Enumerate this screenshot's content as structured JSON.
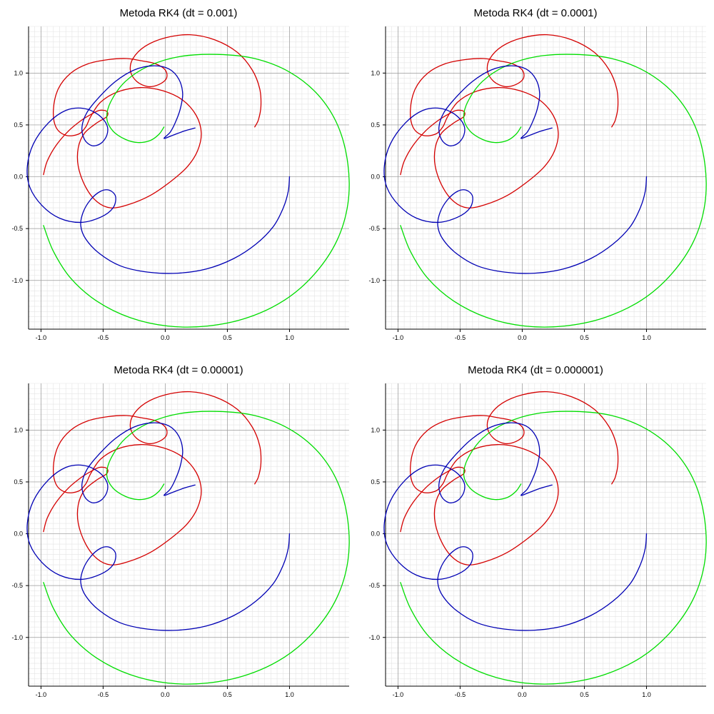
{
  "colors": {
    "body1": "#d40000",
    "body2": "#00dd00",
    "body3": "#0000b4",
    "grid_minor": "#e4e4e4",
    "grid_major": "#9a9a9a",
    "axis": "#000000"
  },
  "chart_data": [
    {
      "type": "line",
      "title": "Metoda RK4 (dt = 0.001)",
      "xlabel": "",
      "ylabel": "",
      "xlim": [
        -1.1,
        1.48
      ],
      "ylim": [
        -1.47,
        1.45
      ],
      "xticks": [
        -1.0,
        -0.5,
        0.0,
        0.5,
        1.0
      ],
      "xtick_labels": [
        "-1.0",
        "-0.5",
        "0.0",
        "0.5",
        "1.0"
      ],
      "yticks": [
        -1.0,
        -0.5,
        0.0,
        0.5,
        1.0
      ],
      "ytick_labels": [
        "-1.0",
        "-0.5",
        "0.0",
        "0.5",
        "1.0"
      ],
      "grid": true
    },
    {
      "type": "line",
      "title": "Metoda RK4 (dt = 0.0001)",
      "xlabel": "",
      "ylabel": "",
      "xlim": [
        -1.1,
        1.48
      ],
      "ylim": [
        -1.47,
        1.45
      ],
      "xticks": [
        -1.0,
        -0.5,
        0.0,
        0.5,
        1.0
      ],
      "xtick_labels": [
        "-1.0",
        "-0.5",
        "0.0",
        "0.5",
        "1.0"
      ],
      "yticks": [
        -1.0,
        -0.5,
        0.0,
        0.5,
        1.0
      ],
      "ytick_labels": [
        "-1.0",
        "-0.5",
        "0.0",
        "0.5",
        "1.0"
      ],
      "grid": true
    },
    {
      "type": "line",
      "title": "Metoda RK4 (dt = 0.00001)",
      "xlabel": "",
      "ylabel": "",
      "xlim": [
        -1.1,
        1.48
      ],
      "ylim": [
        -1.47,
        1.45
      ],
      "xticks": [
        -1.0,
        -0.5,
        0.0,
        0.5,
        1.0
      ],
      "xtick_labels": [
        "-1.0",
        "-0.5",
        "0.0",
        "0.5",
        "1.0"
      ],
      "yticks": [
        -1.0,
        -0.5,
        0.0,
        0.5,
        1.0
      ],
      "ytick_labels": [
        "-1.0",
        "-0.5",
        "0.0",
        "0.5",
        "1.0"
      ],
      "grid": true
    },
    {
      "type": "line",
      "title": "Metoda RK4 (dt = 0.000001)",
      "xlabel": "",
      "ylabel": "",
      "xlim": [
        -1.1,
        1.48
      ],
      "ylim": [
        -1.47,
        1.45
      ],
      "xticks": [
        -1.0,
        -0.5,
        0.0,
        0.5,
        1.0
      ],
      "xtick_labels": [
        "-1.0",
        "-0.5",
        "0.0",
        "0.5",
        "1.0"
      ],
      "yticks": [
        -1.0,
        -0.5,
        0.0,
        0.5,
        1.0
      ],
      "ytick_labels": [
        "-1.0",
        "-0.5",
        "0.0",
        "0.5",
        "1.0"
      ],
      "grid": true
    }
  ],
  "series": [
    {
      "color_key": "body1",
      "points": [
        [
          -0.98,
          0.02
        ],
        [
          -0.95,
          0.15
        ],
        [
          -0.88,
          0.3
        ],
        [
          -0.78,
          0.44
        ],
        [
          -0.68,
          0.54
        ],
        [
          -0.6,
          0.6
        ],
        [
          -0.53,
          0.64
        ],
        [
          -0.47,
          0.63
        ],
        [
          -0.47,
          0.58
        ],
        [
          -0.55,
          0.52
        ],
        [
          -0.65,
          0.42
        ],
        [
          -0.7,
          0.28
        ],
        [
          -0.7,
          0.1
        ],
        [
          -0.64,
          -0.1
        ],
        [
          -0.55,
          -0.24
        ],
        [
          -0.44,
          -0.3
        ],
        [
          -0.3,
          -0.27
        ],
        [
          -0.12,
          -0.18
        ],
        [
          0.05,
          -0.04
        ],
        [
          0.18,
          0.1
        ],
        [
          0.26,
          0.25
        ],
        [
          0.29,
          0.42
        ],
        [
          0.25,
          0.59
        ],
        [
          0.14,
          0.74
        ],
        [
          -0.02,
          0.83
        ],
        [
          -0.2,
          0.86
        ],
        [
          -0.38,
          0.82
        ],
        [
          -0.52,
          0.72
        ],
        [
          -0.6,
          0.58
        ],
        [
          -0.64,
          0.48
        ],
        [
          -0.7,
          0.41
        ],
        [
          -0.8,
          0.4
        ],
        [
          -0.88,
          0.48
        ],
        [
          -0.9,
          0.65
        ],
        [
          -0.86,
          0.85
        ],
        [
          -0.76,
          1.0
        ],
        [
          -0.62,
          1.09
        ],
        [
          -0.46,
          1.13
        ],
        [
          -0.31,
          1.14
        ],
        [
          -0.2,
          1.12
        ],
        [
          -0.08,
          1.09
        ],
        [
          0.0,
          1.03
        ],
        [
          0.01,
          0.95
        ],
        [
          -0.05,
          0.89
        ],
        [
          -0.14,
          0.87
        ],
        [
          -0.23,
          0.92
        ],
        [
          -0.28,
          1.02
        ],
        [
          -0.26,
          1.14
        ],
        [
          -0.16,
          1.26
        ],
        [
          0.0,
          1.34
        ],
        [
          0.2,
          1.37
        ],
        [
          0.4,
          1.32
        ],
        [
          0.58,
          1.2
        ],
        [
          0.7,
          1.03
        ],
        [
          0.76,
          0.85
        ],
        [
          0.77,
          0.68
        ],
        [
          0.75,
          0.55
        ],
        [
          0.72,
          0.48
        ]
      ]
    },
    {
      "color_key": "body2",
      "points": [
        [
          -0.98,
          -0.47
        ],
        [
          -0.9,
          -0.72
        ],
        [
          -0.76,
          -0.98
        ],
        [
          -0.55,
          -1.2
        ],
        [
          -0.28,
          -1.36
        ],
        [
          0.02,
          -1.44
        ],
        [
          0.34,
          -1.44
        ],
        [
          0.66,
          -1.36
        ],
        [
          0.96,
          -1.19
        ],
        [
          1.2,
          -0.94
        ],
        [
          1.38,
          -0.62
        ],
        [
          1.47,
          -0.26
        ],
        [
          1.47,
          0.12
        ],
        [
          1.39,
          0.49
        ],
        [
          1.23,
          0.79
        ],
        [
          1.0,
          1.01
        ],
        [
          0.72,
          1.14
        ],
        [
          0.42,
          1.18
        ],
        [
          0.12,
          1.16
        ],
        [
          -0.13,
          1.07
        ],
        [
          -0.32,
          0.92
        ],
        [
          -0.44,
          0.72
        ],
        [
          -0.47,
          0.56
        ],
        [
          -0.42,
          0.44
        ],
        [
          -0.32,
          0.36
        ],
        [
          -0.22,
          0.33
        ],
        [
          -0.12,
          0.35
        ],
        [
          -0.05,
          0.41
        ],
        [
          -0.01,
          0.48
        ]
      ]
    },
    {
      "color_key": "body3",
      "points": [
        [
          1.0,
          0.0
        ],
        [
          0.99,
          -0.14
        ],
        [
          0.95,
          -0.3
        ],
        [
          0.87,
          -0.48
        ],
        [
          0.73,
          -0.65
        ],
        [
          0.55,
          -0.79
        ],
        [
          0.33,
          -0.89
        ],
        [
          0.1,
          -0.93
        ],
        [
          -0.14,
          -0.92
        ],
        [
          -0.36,
          -0.86
        ],
        [
          -0.53,
          -0.74
        ],
        [
          -0.64,
          -0.6
        ],
        [
          -0.68,
          -0.47
        ],
        [
          -0.66,
          -0.34
        ],
        [
          -0.6,
          -0.22
        ],
        [
          -0.52,
          -0.14
        ],
        [
          -0.45,
          -0.13
        ],
        [
          -0.4,
          -0.19
        ],
        [
          -0.42,
          -0.3
        ],
        [
          -0.52,
          -0.39
        ],
        [
          -0.68,
          -0.44
        ],
        [
          -0.85,
          -0.4
        ],
        [
          -0.99,
          -0.28
        ],
        [
          -1.09,
          -0.1
        ],
        [
          -1.11,
          0.1
        ],
        [
          -1.06,
          0.32
        ],
        [
          -0.94,
          0.52
        ],
        [
          -0.8,
          0.64
        ],
        [
          -0.66,
          0.66
        ],
        [
          -0.54,
          0.6
        ],
        [
          -0.47,
          0.5
        ],
        [
          -0.47,
          0.4
        ],
        [
          -0.52,
          0.32
        ],
        [
          -0.59,
          0.3
        ],
        [
          -0.65,
          0.36
        ],
        [
          -0.67,
          0.48
        ],
        [
          -0.63,
          0.62
        ],
        [
          -0.53,
          0.77
        ],
        [
          -0.4,
          0.92
        ],
        [
          -0.25,
          1.03
        ],
        [
          -0.1,
          1.07
        ],
        [
          0.03,
          1.04
        ],
        [
          0.11,
          0.94
        ],
        [
          0.14,
          0.8
        ],
        [
          0.12,
          0.65
        ],
        [
          0.08,
          0.52
        ],
        [
          0.04,
          0.43
        ],
        [
          -0.01,
          0.37
        ],
        [
          0.06,
          0.4
        ],
        [
          0.15,
          0.44
        ],
        [
          0.24,
          0.47
        ]
      ]
    }
  ]
}
